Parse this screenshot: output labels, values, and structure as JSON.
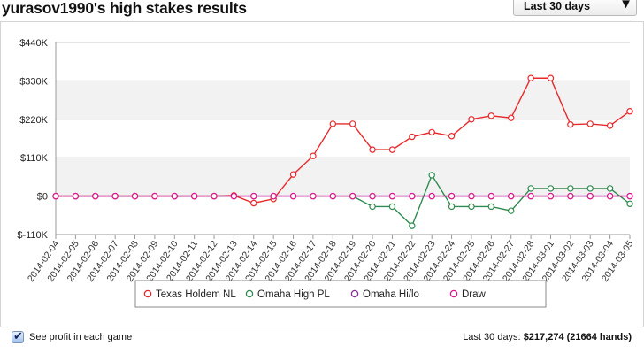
{
  "header": {
    "title": "yurasov1990's high stakes results",
    "period_select": "Last 30 days",
    "period_arrow": "▼"
  },
  "footer": {
    "checkbox_label": "See profit in each game",
    "stats_prefix": "Last 30 days:",
    "stats_value": "$217,274 (21664 hands)",
    "checkbox_checked": true
  },
  "chart_data": {
    "type": "line",
    "grid": true,
    "legend_position": "bottom",
    "ylim": [
      -110000,
      440000
    ],
    "y_ticks": [
      {
        "value": -110000,
        "label": "$-110K"
      },
      {
        "value": 0,
        "label": "$0"
      },
      {
        "value": 110000,
        "label": "$110K"
      },
      {
        "value": 220000,
        "label": "$220K"
      },
      {
        "value": 330000,
        "label": "$330K"
      },
      {
        "value": 440000,
        "label": "$440K"
      }
    ],
    "x": [
      "2014-02-04",
      "2014-02-05",
      "2014-02-06",
      "2014-02-07",
      "2014-02-08",
      "2014-02-09",
      "2014-02-10",
      "2014-02-11",
      "2014-02-12",
      "2014-02-13",
      "2014-02-14",
      "2014-02-15",
      "2014-02-16",
      "2014-02-17",
      "2014-02-18",
      "2014-02-19",
      "2014-02-20",
      "2014-02-21",
      "2014-02-22",
      "2014-02-23",
      "2014-02-24",
      "2014-02-25",
      "2014-02-26",
      "2014-02-27",
      "2014-02-28",
      "2014-03-01",
      "2014-03-02",
      "2014-03-03",
      "2014-03-04",
      "2014-03-05"
    ],
    "series": [
      {
        "name": "Texas Holdem NL",
        "color": "#e8292b",
        "points": [
          [
            "2014-02-04",
            0
          ],
          [
            "2014-02-05",
            0
          ],
          [
            "2014-02-06",
            0
          ],
          [
            "2014-02-07",
            0
          ],
          [
            "2014-02-08",
            0
          ],
          [
            "2014-02-09",
            0
          ],
          [
            "2014-02-10",
            0
          ],
          [
            "2014-02-11",
            0
          ],
          [
            "2014-02-12",
            0
          ],
          [
            "2014-02-13",
            2000
          ],
          [
            "2014-02-14",
            -20000
          ],
          [
            "2014-02-15",
            -8000
          ],
          [
            "2014-02-16",
            62000
          ],
          [
            "2014-02-17",
            115000
          ],
          [
            "2014-02-18",
            207000
          ],
          [
            "2014-02-19",
            207000
          ],
          [
            "2014-02-20",
            133000
          ],
          [
            "2014-02-21",
            133000
          ],
          [
            "2014-02-22",
            170000
          ],
          [
            "2014-02-23",
            183000
          ],
          [
            "2014-02-24",
            172000
          ],
          [
            "2014-02-25",
            220000
          ],
          [
            "2014-02-26",
            230000
          ],
          [
            "2014-02-27",
            224000
          ],
          [
            "2014-02-28",
            338000
          ],
          [
            "2014-03-01",
            338000
          ],
          [
            "2014-03-02",
            205000
          ],
          [
            "2014-03-03",
            207000
          ],
          [
            "2014-03-04",
            202000
          ],
          [
            "2014-03-05",
            243000
          ]
        ]
      },
      {
        "name": "Omaha High PL",
        "color": "#2e8b4f",
        "points": [
          [
            "2014-02-19",
            0
          ],
          [
            "2014-02-20",
            -30000
          ],
          [
            "2014-02-21",
            -30000
          ],
          [
            "2014-02-22",
            -85000
          ],
          [
            "2014-02-23",
            60000
          ],
          [
            "2014-02-24",
            -30000
          ],
          [
            "2014-02-25",
            -30000
          ],
          [
            "2014-02-26",
            -30000
          ],
          [
            "2014-02-27",
            -42000
          ],
          [
            "2014-02-28",
            22000
          ],
          [
            "2014-03-01",
            22000
          ],
          [
            "2014-03-02",
            22000
          ],
          [
            "2014-03-03",
            22000
          ],
          [
            "2014-03-04",
            22000
          ],
          [
            "2014-03-05",
            -22000
          ]
        ]
      },
      {
        "name": "Omaha Hi/lo",
        "color": "#8a2d9c",
        "points": [
          [
            "2014-02-04",
            0
          ],
          [
            "2014-02-05",
            0
          ],
          [
            "2014-02-06",
            0
          ],
          [
            "2014-02-07",
            0
          ],
          [
            "2014-02-08",
            0
          ],
          [
            "2014-02-09",
            0
          ],
          [
            "2014-02-10",
            0
          ],
          [
            "2014-02-11",
            0
          ],
          [
            "2014-02-12",
            0
          ],
          [
            "2014-02-13",
            0
          ],
          [
            "2014-02-14",
            0
          ],
          [
            "2014-02-15",
            0
          ],
          [
            "2014-02-16",
            0
          ],
          [
            "2014-02-17",
            0
          ],
          [
            "2014-02-18",
            0
          ],
          [
            "2014-02-19",
            0
          ],
          [
            "2014-02-20",
            0
          ],
          [
            "2014-02-21",
            0
          ],
          [
            "2014-02-22",
            0
          ],
          [
            "2014-02-23",
            0
          ],
          [
            "2014-02-24",
            0
          ],
          [
            "2014-02-25",
            0
          ],
          [
            "2014-02-26",
            0
          ],
          [
            "2014-02-27",
            0
          ],
          [
            "2014-02-28",
            0
          ],
          [
            "2014-03-01",
            0
          ],
          [
            "2014-03-02",
            0
          ],
          [
            "2014-03-03",
            0
          ],
          [
            "2014-03-04",
            0
          ],
          [
            "2014-03-05",
            0
          ]
        ]
      },
      {
        "name": "Draw",
        "color": "#e0198c",
        "points": [
          [
            "2014-02-04",
            0
          ],
          [
            "2014-02-05",
            0
          ],
          [
            "2014-02-06",
            0
          ],
          [
            "2014-02-07",
            0
          ],
          [
            "2014-02-08",
            0
          ],
          [
            "2014-02-09",
            0
          ],
          [
            "2014-02-10",
            0
          ],
          [
            "2014-02-11",
            0
          ],
          [
            "2014-02-12",
            0
          ],
          [
            "2014-02-13",
            0
          ],
          [
            "2014-02-14",
            0
          ],
          [
            "2014-02-15",
            0
          ],
          [
            "2014-02-16",
            0
          ],
          [
            "2014-02-17",
            0
          ],
          [
            "2014-02-18",
            0
          ],
          [
            "2014-02-19",
            0
          ],
          [
            "2014-02-20",
            0
          ],
          [
            "2014-02-21",
            0
          ],
          [
            "2014-02-22",
            0
          ],
          [
            "2014-02-23",
            0
          ],
          [
            "2014-02-24",
            0
          ],
          [
            "2014-02-25",
            0
          ],
          [
            "2014-02-26",
            0
          ],
          [
            "2014-02-27",
            0
          ],
          [
            "2014-02-28",
            0
          ],
          [
            "2014-03-01",
            0
          ],
          [
            "2014-03-02",
            0
          ],
          [
            "2014-03-03",
            0
          ],
          [
            "2014-03-04",
            0
          ],
          [
            "2014-03-05",
            0
          ]
        ]
      }
    ]
  }
}
